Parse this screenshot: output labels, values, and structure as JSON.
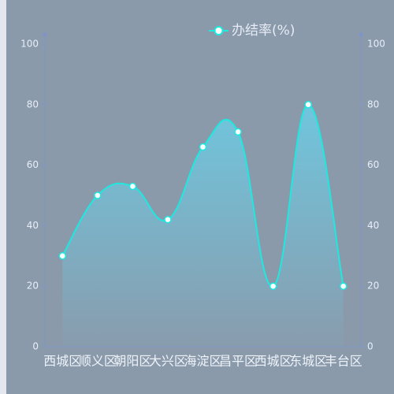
{
  "chart_data": {
    "type": "line",
    "categories": [
      "西城区",
      "顺义区",
      "朝阳区",
      "大兴区",
      "海淀区",
      "昌平区",
      "西城区",
      "东城区",
      "丰台区"
    ],
    "series": [
      {
        "name": "办结率(%)",
        "color": "#1de9e0",
        "values": [
          30,
          50,
          53,
          42,
          66,
          71,
          20,
          80,
          20
        ]
      }
    ],
    "ylim": [
      0,
      100
    ],
    "yticks": [
      0,
      20,
      40,
      60,
      80,
      100
    ],
    "y2lim": [
      0,
      100
    ],
    "y2ticks": [
      0,
      20,
      40,
      60,
      80,
      100
    ],
    "smooth": true,
    "area": true,
    "area_color": "#6ec8e0",
    "legend": "top"
  }
}
